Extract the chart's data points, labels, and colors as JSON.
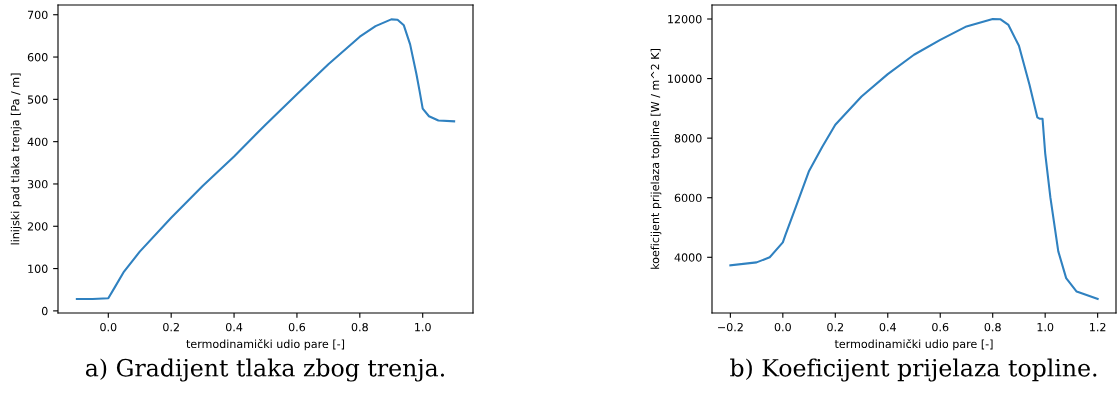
{
  "chart_data": [
    {
      "type": "line",
      "xlabel": "termodinamički udio pare [-]",
      "ylabel": "linijski pad tlaka trenja [Pa / m]",
      "annotations": [
        "a) Gradijent tlaka zbog trenja."
      ],
      "xlim": [
        -0.16,
        1.16
      ],
      "ylim": [
        -5,
        723
      ],
      "xticks": [
        {
          "value": 0,
          "label": "0.0"
        },
        {
          "value": 0.2,
          "label": "0.2"
        },
        {
          "value": 0.4,
          "label": "0.4"
        },
        {
          "value": 0.6,
          "label": "0.6"
        },
        {
          "value": 0.8,
          "label": "0.8"
        },
        {
          "value": 1,
          "label": "1.0"
        }
      ],
      "yticks": [
        0,
        100,
        200,
        300,
        400,
        500,
        600,
        700
      ],
      "grid": false,
      "legend": false,
      "series": [
        {
          "color": "#2f81c0",
          "x": [
            -0.1,
            -0.05,
            0,
            0.02,
            0.05,
            0.1,
            0.2,
            0.3,
            0.4,
            0.5,
            0.6,
            0.7,
            0.8,
            0.85,
            0.9,
            0.92,
            0.94,
            0.96,
            0.98,
            0.99,
            1.0,
            1.02,
            1.05,
            1.1
          ],
          "values": [
            28,
            28,
            30,
            55,
            93,
            140,
            220,
            295,
            365,
            440,
            512,
            583,
            648,
            673,
            689,
            688,
            675,
            630,
            560,
            520,
            478,
            460,
            450,
            448
          ]
        }
      ]
    },
    {
      "type": "line",
      "xlabel": "termodinamički udio pare [-]",
      "ylabel": "koeficijent prijelaza topline [W / m^2 K]",
      "annotations": [
        "b) Koeficijent prijelaza topline."
      ],
      "xlim": [
        -0.27,
        1.27
      ],
      "ylim": [
        2130,
        12470
      ],
      "xticks": [
        {
          "value": -0.2,
          "label": "−0.2"
        },
        {
          "value": 0,
          "label": "0.0"
        },
        {
          "value": 0.2,
          "label": "0.2"
        },
        {
          "value": 0.4,
          "label": "0.4"
        },
        {
          "value": 0.6,
          "label": "0.6"
        },
        {
          "value": 0.8,
          "label": "0.8"
        },
        {
          "value": 1,
          "label": "1.0"
        },
        {
          "value": 1.2,
          "label": "1.2"
        }
      ],
      "yticks": [
        4000,
        6000,
        8000,
        10000,
        12000
      ],
      "grid": false,
      "legend": false,
      "series": [
        {
          "color": "#2f81c0",
          "x": [
            -0.2,
            -0.1,
            -0.05,
            0,
            0.01,
            0.05,
            0.1,
            0.15,
            0.2,
            0.3,
            0.4,
            0.5,
            0.6,
            0.7,
            0.8,
            0.83,
            0.86,
            0.9,
            0.94,
            0.97,
            0.98,
            0.99,
            1.0,
            1.02,
            1.05,
            1.08,
            1.12,
            1.2
          ],
          "values": [
            3730,
            3830,
            4000,
            4500,
            4750,
            5700,
            6900,
            7700,
            8450,
            9400,
            10150,
            10800,
            11300,
            11750,
            12000,
            11990,
            11800,
            11100,
            9800,
            8700,
            8650,
            8650,
            7500,
            6000,
            4200,
            3300,
            2850,
            2600
          ]
        }
      ]
    }
  ]
}
